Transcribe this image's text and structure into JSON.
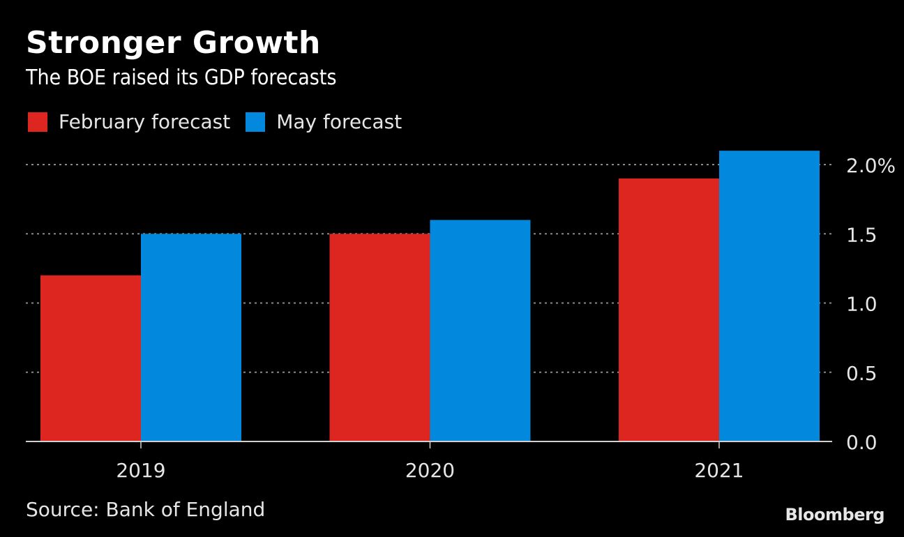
{
  "header": {
    "title": "Stronger Growth",
    "subtitle": "The BOE raised its GDP forecasts"
  },
  "legend": [
    {
      "label": "February forecast",
      "color": "#dd2620"
    },
    {
      "label": "May forecast",
      "color": "#0288dc"
    }
  ],
  "footer": {
    "source": "Source: Bank of England",
    "brand": "Bloomberg"
  },
  "chart_data": {
    "type": "bar",
    "title": "Stronger Growth",
    "subtitle": "The BOE raised its GDP forecasts",
    "categories": [
      "2019",
      "2020",
      "2021"
    ],
    "series": [
      {
        "name": "February forecast",
        "color": "#dd2620",
        "values": [
          1.2,
          1.5,
          1.9
        ]
      },
      {
        "name": "May forecast",
        "color": "#0288dc",
        "values": [
          1.5,
          1.6,
          2.1
        ]
      }
    ],
    "xlabel": "",
    "ylabel": "",
    "ylim": [
      0,
      2.0
    ],
    "yticks": [
      0.0,
      0.5,
      1.0,
      1.5,
      2.0
    ],
    "ytick_labels": [
      "0.0",
      "0.5",
      "1.0",
      "1.5",
      "2.0%"
    ],
    "y_axis_side": "right",
    "grid": true,
    "legend_position": "top-left",
    "source": "Source: Bank of England"
  }
}
